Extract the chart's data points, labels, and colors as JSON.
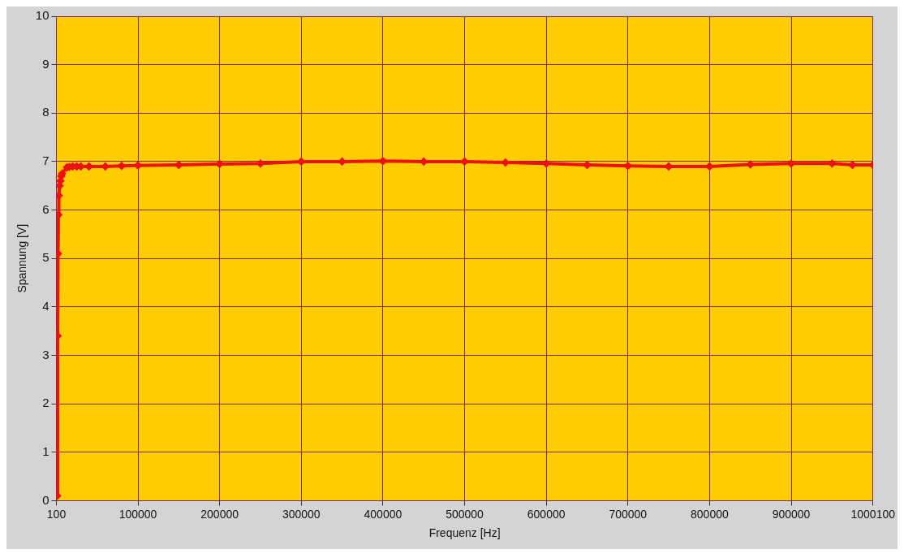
{
  "chart_data": {
    "type": "line",
    "xlabel": "Frequenz [Hz]",
    "ylabel": "Spannung [V]",
    "xlim": [
      100,
      1000100
    ],
    "xticks": [
      100,
      100000,
      200000,
      300000,
      400000,
      500000,
      600000,
      700000,
      800000,
      900000,
      1000100
    ],
    "ylim": [
      0,
      10
    ],
    "yticks": [
      0,
      1,
      2,
      3,
      4,
      5,
      6,
      7,
      8,
      9,
      10
    ],
    "grid": true,
    "legend": false,
    "marker": "diamond",
    "line_style": "solid",
    "series": [
      {
        "color": "#ee1111",
        "x": [
          1100,
          1600,
          2100,
          2600,
          3100,
          4100,
          5100,
          6100,
          7100,
          13000,
          16000,
          20000,
          25000,
          30000,
          40000,
          60000,
          80000,
          100000,
          150000,
          200000,
          250000,
          300000,
          350000,
          400000,
          450000,
          500000,
          550000,
          600000,
          650000,
          700000,
          750000,
          800000,
          850000,
          900000,
          950000,
          975000,
          1000100
        ],
        "values": [
          0.1,
          3.4,
          5.1,
          5.9,
          6.3,
          6.5,
          6.6,
          6.7,
          6.75,
          6.88,
          6.89,
          6.9,
          6.9,
          6.9,
          6.9,
          6.9,
          6.91,
          6.92,
          6.93,
          6.95,
          6.96,
          7.0,
          7.0,
          7.01,
          7.0,
          7.0,
          6.98,
          6.96,
          6.93,
          6.91,
          6.9,
          6.9,
          6.94,
          6.96,
          6.96,
          6.93,
          6.93
        ]
      }
    ]
  }
}
